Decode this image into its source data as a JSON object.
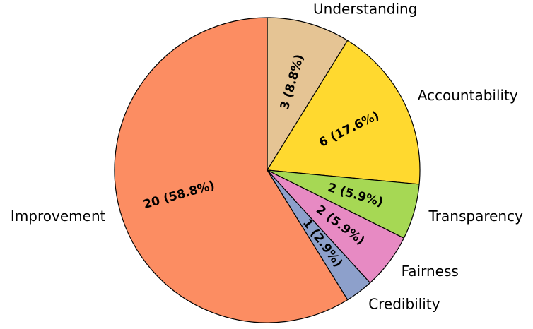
{
  "chart_data": {
    "type": "pie",
    "start_angle_deg": 90,
    "direction": "clockwise",
    "edge_color": "#000000",
    "slices": [
      {
        "label": "Understanding",
        "value": 3,
        "display": "3 (8.8%)",
        "color": "#E5C494"
      },
      {
        "label": "Accountability",
        "value": 6,
        "display": "6 (17.6%)",
        "color": "#FFD92F"
      },
      {
        "label": "Transparency",
        "value": 2,
        "display": "2 (5.9%)",
        "color": "#A6D854"
      },
      {
        "label": "Fairness",
        "value": 2,
        "display": "2 (5.9%)",
        "color": "#E78AC3"
      },
      {
        "label": "Credibility",
        "value": 1,
        "display": "1 (2.9%)",
        "color": "#8DA0CB"
      },
      {
        "label": "Improvement",
        "value": 20,
        "display": "20 (58.8%)",
        "color": "#FC8D62"
      }
    ]
  }
}
